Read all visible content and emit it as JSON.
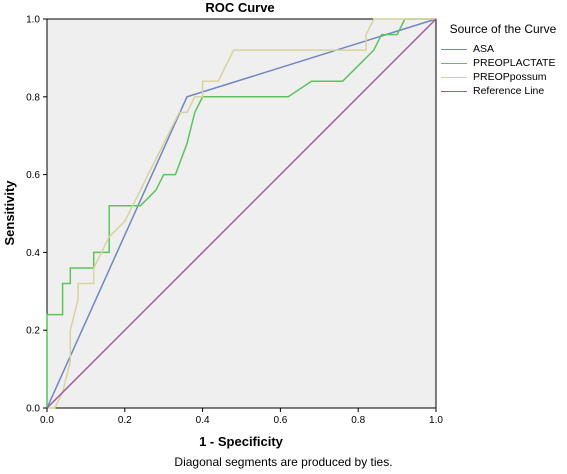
{
  "chart_data": {
    "type": "line",
    "title": "ROC Curve",
    "xlabel": "1 - Specificity",
    "ylabel": "Sensitivity",
    "xlim": [
      0.0,
      1.0
    ],
    "ylim": [
      0.0,
      1.0
    ],
    "xticks": [
      "0.0",
      "0.2",
      "0.4",
      "0.6",
      "0.8",
      "1.0"
    ],
    "yticks": [
      "0.0",
      "0.2",
      "0.4",
      "0.6",
      "0.8",
      "1.0"
    ],
    "grid": false,
    "legend": {
      "title": "Source of the Curve",
      "placement": "outside-right",
      "entries": [
        "ASA",
        "PREOPLACTATE",
        "PREOPpossum",
        "Reference Line"
      ]
    },
    "series": [
      {
        "name": "ASA",
        "color": "#6f86c6",
        "x": [
          0.0,
          0.36,
          1.0
        ],
        "y": [
          0.0,
          0.8,
          1.0
        ]
      },
      {
        "name": "PREOPLACTATE",
        "color": "#5cc35c",
        "x": [
          0.0,
          0.0,
          0.04,
          0.04,
          0.06,
          0.06,
          0.12,
          0.12,
          0.16,
          0.16,
          0.24,
          0.28,
          0.3,
          0.33,
          0.36,
          0.38,
          0.4,
          0.62,
          0.68,
          0.76,
          0.8,
          0.84,
          0.86,
          0.9,
          0.92,
          1.0
        ],
        "y": [
          0.0,
          0.24,
          0.24,
          0.32,
          0.32,
          0.36,
          0.36,
          0.4,
          0.4,
          0.52,
          0.52,
          0.56,
          0.6,
          0.6,
          0.68,
          0.76,
          0.8,
          0.8,
          0.84,
          0.84,
          0.88,
          0.92,
          0.96,
          0.96,
          1.0,
          1.0
        ]
      },
      {
        "name": "PREOPpossum",
        "color": "#d8d39c",
        "x": [
          0.0,
          0.02,
          0.04,
          0.06,
          0.06,
          0.08,
          0.08,
          0.12,
          0.12,
          0.14,
          0.16,
          0.2,
          0.22,
          0.24,
          0.26,
          0.28,
          0.3,
          0.32,
          0.34,
          0.36,
          0.38,
          0.4,
          0.4,
          0.44,
          0.46,
          0.48,
          0.5,
          0.56,
          0.82,
          0.82,
          0.84,
          1.0
        ],
        "y": [
          0.0,
          0.0,
          0.04,
          0.12,
          0.2,
          0.28,
          0.32,
          0.32,
          0.36,
          0.4,
          0.44,
          0.48,
          0.52,
          0.56,
          0.6,
          0.64,
          0.68,
          0.72,
          0.76,
          0.76,
          0.8,
          0.8,
          0.84,
          0.84,
          0.88,
          0.92,
          0.92,
          0.92,
          0.92,
          0.96,
          1.0,
          1.0
        ]
      },
      {
        "name": "Reference Line",
        "color": "#a35aa3",
        "x": [
          0.0,
          1.0
        ],
        "y": [
          0.0,
          1.0
        ]
      }
    ],
    "footnote": "Diagonal segments are produced by ties."
  }
}
